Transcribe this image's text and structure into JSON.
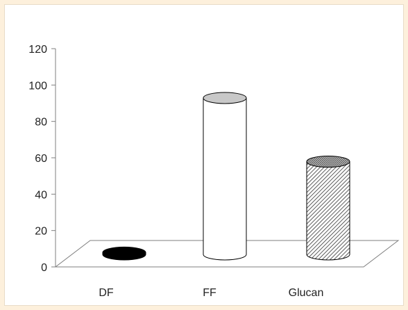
{
  "chart_data": {
    "type": "bar",
    "style": "3d-cylinder",
    "categories": [
      "DF",
      "FF",
      "Glucan"
    ],
    "values": [
      1,
      86,
      51
    ],
    "ylim": [
      0,
      120
    ],
    "yticks": [
      "0",
      "20",
      "40",
      "60",
      "80",
      "100",
      "120"
    ],
    "grid": false,
    "legend": "none",
    "colors": {
      "background": "#fdf0dc",
      "plot_area": "#ffffff",
      "DF_fill": "#000000",
      "FF_fill": "#ffffff",
      "FF_top": "#c8c8c8",
      "Glucan_fill": "hatched",
      "axis": "#7f7f7f"
    }
  }
}
